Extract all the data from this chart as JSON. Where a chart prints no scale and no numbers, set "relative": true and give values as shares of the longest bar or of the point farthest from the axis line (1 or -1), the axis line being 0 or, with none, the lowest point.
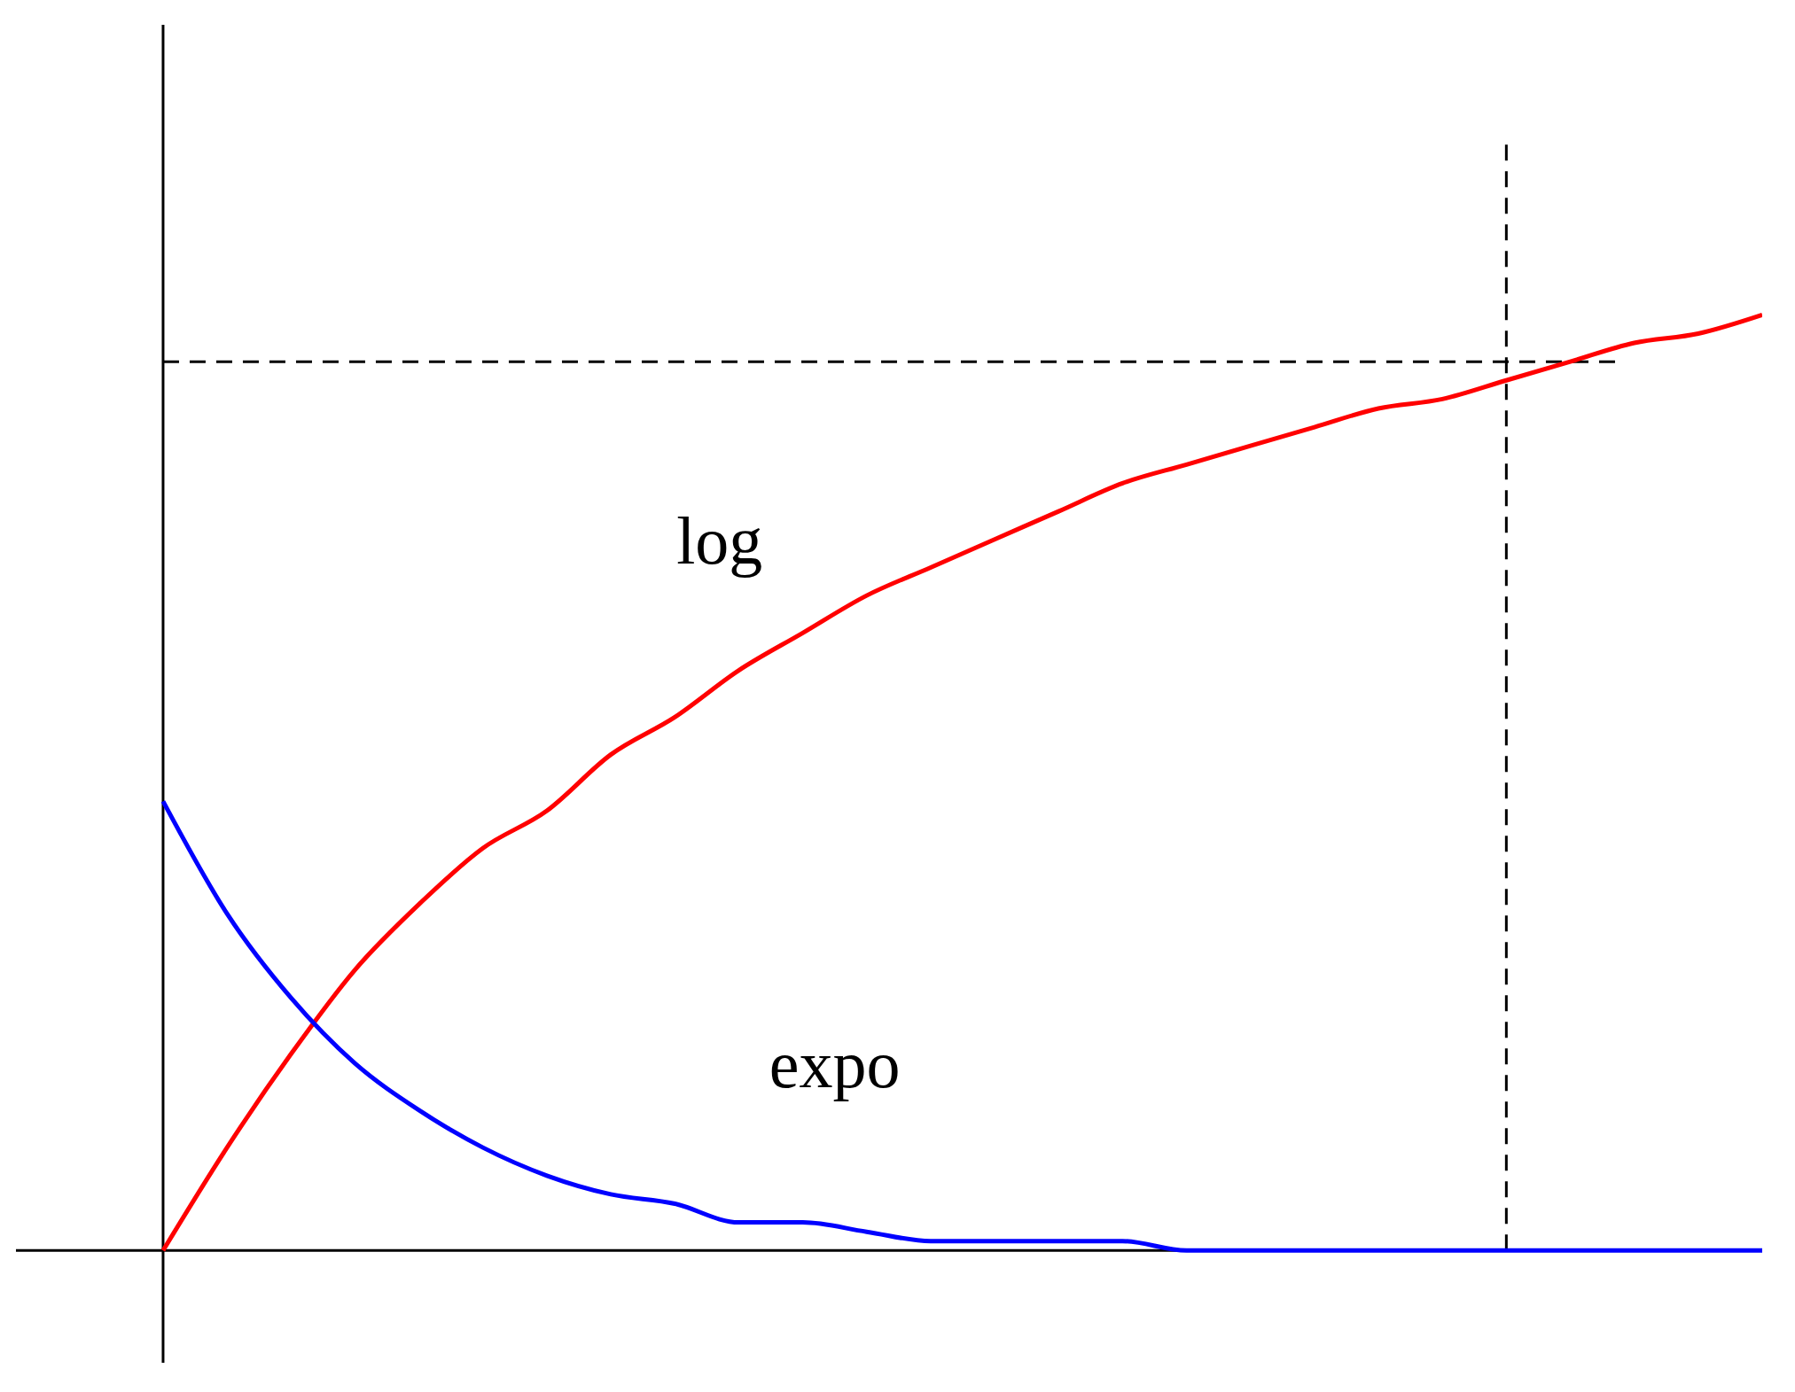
{
  "chart_data": {
    "type": "line",
    "relative": true,
    "legend": false,
    "marker": "none",
    "line_style": "solid",
    "categories": [
      null,
      null,
      null,
      null,
      null,
      null,
      null,
      null,
      null,
      null,
      null,
      null,
      null,
      null,
      null,
      null,
      null,
      null,
      null,
      null,
      null,
      null,
      null,
      null,
      null,
      null
    ],
    "series": [
      {
        "name": "log",
        "color": "#ff0000",
        "values": [
          0,
          0.11,
          0.21,
          0.3,
          0.37,
          0.43,
          0.47,
          0.53,
          0.57,
          0.62,
          0.66,
          0.7,
          0.73,
          0.76,
          0.79,
          0.82,
          0.84,
          0.86,
          0.88,
          0.9,
          0.91,
          0.93,
          0.95,
          0.97,
          0.98,
          1
        ]
      },
      {
        "name": "expo",
        "color": "#0000ff",
        "values": [
          0.48,
          0.36,
          0.27,
          0.2,
          0.15,
          0.11,
          0.08,
          0.06,
          0.05,
          0.03,
          0.03,
          0.02,
          0.01,
          0.01,
          0.01,
          0.01,
          0,
          0,
          0,
          0,
          0,
          0,
          0,
          0,
          0,
          0
        ]
      }
    ],
    "ref_lines": [
      {
        "axis": "y",
        "value": 0.95,
        "line_style": "dashed",
        "color": "#000000"
      }
    ]
  }
}
